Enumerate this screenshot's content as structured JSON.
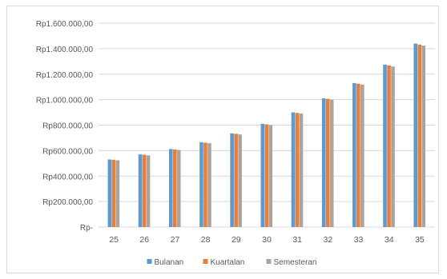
{
  "chart_data": {
    "type": "bar",
    "categories": [
      "25",
      "26",
      "27",
      "28",
      "29",
      "30",
      "31",
      "32",
      "33",
      "34",
      "35"
    ],
    "series": [
      {
        "name": "Bulanan",
        "color": "#5b9bd5",
        "values": [
          530000,
          570000,
          612000,
          665000,
          735000,
          810000,
          900000,
          1010000,
          1130000,
          1275000,
          1440000
        ]
      },
      {
        "name": "Kuartalan",
        "color": "#ed7d31",
        "values": [
          528000,
          567000,
          609000,
          662000,
          732000,
          806000,
          896000,
          1006000,
          1125000,
          1268000,
          1432000
        ]
      },
      {
        "name": "Semesteran",
        "color": "#a5a5a5",
        "values": [
          524000,
          563000,
          605000,
          658000,
          727000,
          801000,
          891000,
          1000000,
          1118000,
          1260000,
          1424000
        ]
      }
    ],
    "ylim": [
      0,
      1600000
    ],
    "y_ticks": [
      0,
      200000,
      400000,
      600000,
      800000,
      1000000,
      1200000,
      1400000,
      1600000
    ],
    "y_tick_labels": [
      "Rp-",
      "Rp200.000,00",
      "Rp400.000,00",
      "Rp600.000,00",
      "Rp800.000,00",
      "Rp1.000.000,00",
      "Rp1.200.000,00",
      "Rp1.400.000,00",
      "Rp1.600.000,00"
    ],
    "grid": true,
    "legend_position": "bottom",
    "title": "",
    "xlabel": "",
    "ylabel": ""
  }
}
